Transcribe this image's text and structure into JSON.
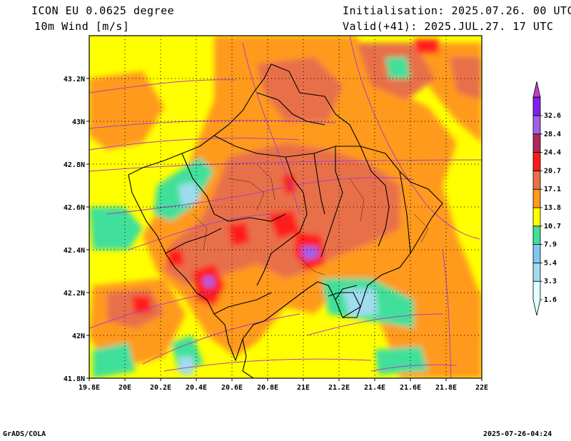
{
  "header": {
    "model": "ICON EU 0.0625 degree",
    "variable": "10m Wind [m/s]",
    "initialisation": "Initialisation: 2025.07.26. 00 UTC",
    "valid": "Valid(+41): 2025.JUL.27. 17 UTC"
  },
  "map": {
    "lon_range": [
      19.8,
      22.0
    ],
    "lat_range": [
      41.8,
      43.4
    ],
    "x_ticks": [
      "19.8E",
      "20E",
      "20.2E",
      "20.4E",
      "20.6E",
      "20.8E",
      "21E",
      "21.2E",
      "21.4E",
      "21.6E",
      "21.8E",
      "22E"
    ],
    "y_ticks": [
      "41.8N",
      "42N",
      "42.2N",
      "42.4N",
      "42.6N",
      "42.8N",
      "43N",
      "43.2N"
    ],
    "grid": "dotted",
    "streamline_color": "#b040c0"
  },
  "legend": {
    "labels": [
      "1.6",
      "3.3",
      "5.4",
      "7.9",
      "10.7",
      "13.8",
      "17.1",
      "20.7",
      "24.4",
      "28.4",
      "32.6"
    ],
    "colors": [
      "#e0ffff",
      "#a0dcf0",
      "#7ec8f0",
      "#40e09a",
      "#ffff00",
      "#ff9a1a",
      "#e8704a",
      "#ff1a1a",
      "#b0285a",
      "#a060e8",
      "#8020f0"
    ],
    "top_arrow_color": "#c040c0"
  },
  "footer": {
    "credit": "GrADS/COLA",
    "timestamp": "2025-07-26-04:24"
  }
}
